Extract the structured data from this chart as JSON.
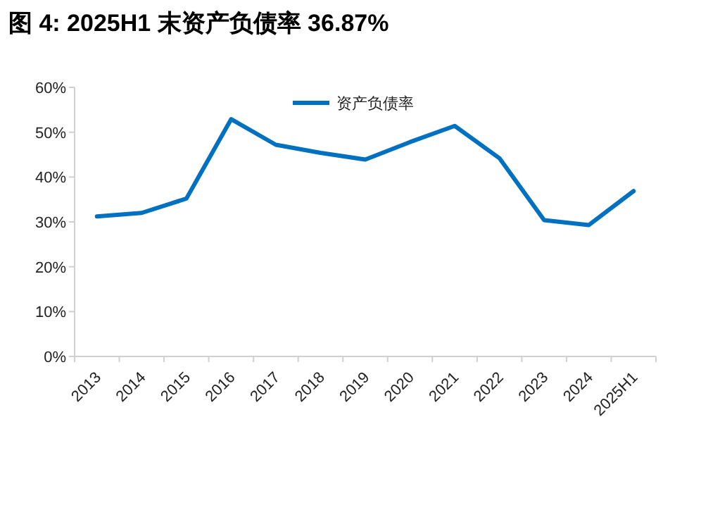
{
  "chart_data": {
    "type": "line",
    "title": "图 4:    2025H1 末资产负债率 36.87%",
    "categories": [
      "2013",
      "2014",
      "2015",
      "2016",
      "2017",
      "2018",
      "2019",
      "2020",
      "2021",
      "2022",
      "2023",
      "2024",
      "2025H1"
    ],
    "series": [
      {
        "name": "资产负债率",
        "color": "#0070c0",
        "values": [
          31.2,
          32.0,
          35.2,
          52.9,
          47.2,
          45.4,
          43.9,
          47.8,
          51.4,
          44.2,
          30.4,
          29.3,
          36.87
        ]
      }
    ],
    "ylim": [
      0,
      60
    ],
    "yticks": [
      {
        "value": 0,
        "label": "0%"
      },
      {
        "value": 10,
        "label": "10%"
      },
      {
        "value": 20,
        "label": "20%"
      },
      {
        "value": 30,
        "label": "30%"
      },
      {
        "value": 40,
        "label": "40%"
      },
      {
        "value": 50,
        "label": "50%"
      },
      {
        "value": 60,
        "label": "60%"
      }
    ],
    "grid": false,
    "legend": "top",
    "marker": "none",
    "line_style": "solid"
  }
}
